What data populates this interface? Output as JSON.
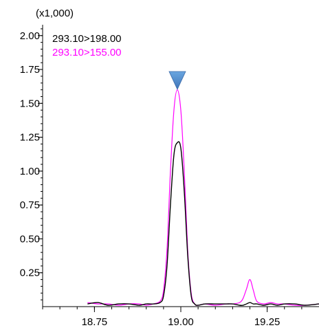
{
  "chart_data": {
    "type": "line",
    "y_scale_label": "(x1,000)",
    "xlim": [
      18.6,
      19.4
    ],
    "ylim": [
      0,
      2.08
    ],
    "x_ticks": [
      {
        "value": 18.75,
        "label": "18.75"
      },
      {
        "value": 19.0,
        "label": "19.00"
      },
      {
        "value": 19.25,
        "label": "19.25"
      }
    ],
    "x_minor_step": 0.05,
    "y_ticks": [
      {
        "value": 0.25,
        "label": "0.25"
      },
      {
        "value": 0.5,
        "label": "0.50"
      },
      {
        "value": 0.75,
        "label": "0.75"
      },
      {
        "value": 1.0,
        "label": "1.00"
      },
      {
        "value": 1.25,
        "label": "1.25"
      },
      {
        "value": 1.5,
        "label": "1.50"
      },
      {
        "value": 1.75,
        "label": "1.75"
      },
      {
        "value": 2.0,
        "label": "2.00"
      }
    ],
    "y_minor_step": 0.05,
    "legend_position": "top-left",
    "peak_marker": {
      "x": 18.99,
      "color": "#4a86c8",
      "shape": "triangle-down"
    },
    "series": [
      {
        "name": "293.10>198.00",
        "color": "#000000",
        "x": [
          18.73,
          18.76,
          18.79,
          18.82,
          18.85,
          18.88,
          18.9,
          18.92,
          18.94,
          18.95,
          18.96,
          18.97,
          18.98,
          18.99,
          19.0,
          19.01,
          19.02,
          19.03,
          19.04,
          19.05,
          19.07,
          19.1,
          19.13,
          19.15,
          19.17,
          19.18,
          19.19,
          19.2,
          19.21,
          19.22,
          19.24,
          19.26,
          19.28,
          19.3,
          19.33,
          19.36,
          19.4
        ],
        "y": [
          0.02,
          0.03,
          0.01,
          0.02,
          0.02,
          0.01,
          0.02,
          0.02,
          0.03,
          0.08,
          0.3,
          0.75,
          1.12,
          1.21,
          1.17,
          0.85,
          0.38,
          0.08,
          0.02,
          0.01,
          0.02,
          0.02,
          0.02,
          0.02,
          0.01,
          0.01,
          0.02,
          0.03,
          0.02,
          0.02,
          0.01,
          0.02,
          0.01,
          0.02,
          0.02,
          0.01,
          0.02
        ]
      },
      {
        "name": "293.10>155.00",
        "color": "#ff00ff",
        "x": [
          18.73,
          18.76,
          18.79,
          18.82,
          18.85,
          18.88,
          18.9,
          18.92,
          18.94,
          18.95,
          18.96,
          18.97,
          18.98,
          18.99,
          19.0,
          19.01,
          19.02,
          19.03,
          19.04,
          19.05,
          19.07,
          19.1,
          19.13,
          19.15,
          19.17,
          19.18,
          19.19,
          19.2,
          19.21,
          19.22,
          19.24,
          19.26,
          19.28,
          19.3,
          19.33,
          19.36,
          19.4
        ],
        "y": [
          0.03,
          0.02,
          0.02,
          0.01,
          0.02,
          0.02,
          0.01,
          0.02,
          0.04,
          0.12,
          0.42,
          1.0,
          1.45,
          1.6,
          1.45,
          1.0,
          0.42,
          0.1,
          0.02,
          0.01,
          0.02,
          0.01,
          0.02,
          0.02,
          0.03,
          0.06,
          0.13,
          0.2,
          0.12,
          0.04,
          0.02,
          0.03,
          0.02,
          0.02,
          0.01,
          0.01,
          0.02
        ]
      }
    ]
  }
}
